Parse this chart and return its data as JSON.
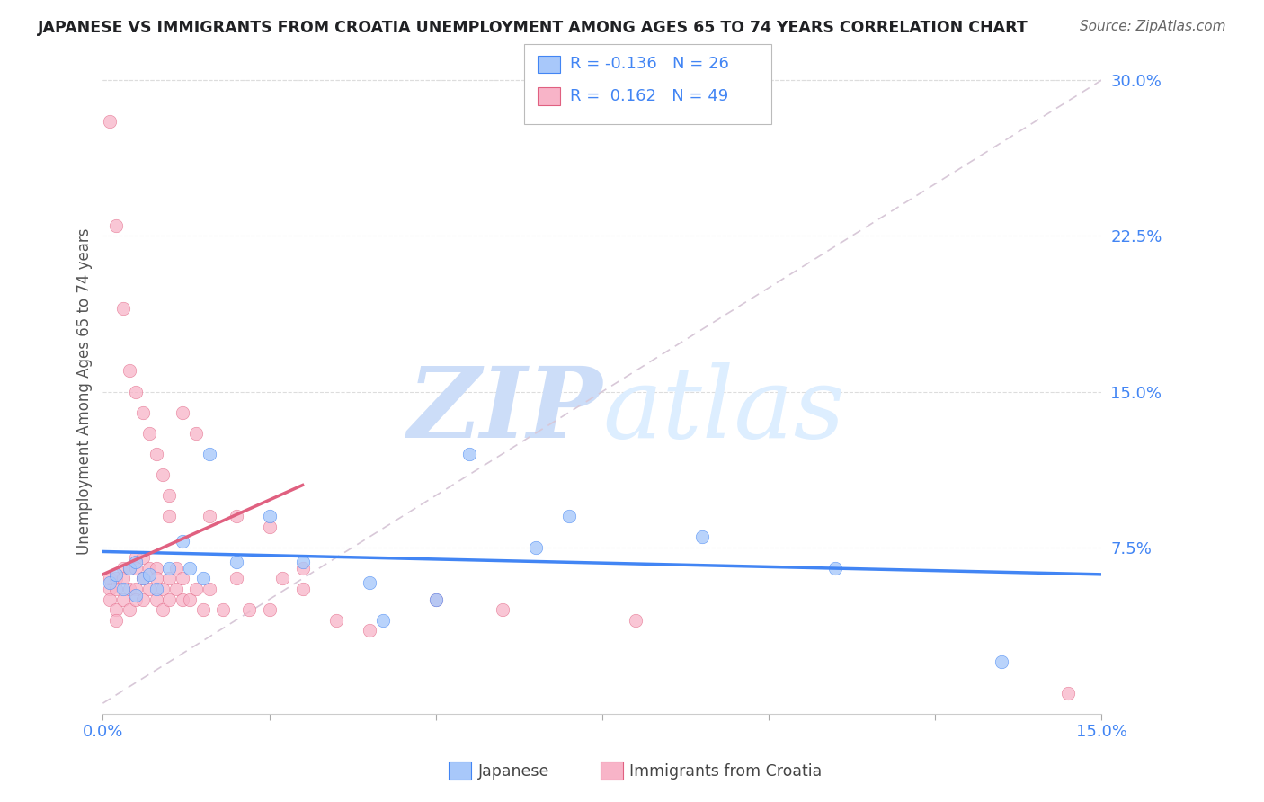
{
  "title": "JAPANESE VS IMMIGRANTS FROM CROATIA UNEMPLOYMENT AMONG AGES 65 TO 74 YEARS CORRELATION CHART",
  "source": "Source: ZipAtlas.com",
  "ylabel": "Unemployment Among Ages 65 to 74 years",
  "xlim": [
    0.0,
    0.15
  ],
  "ylim": [
    -0.005,
    0.305
  ],
  "legend_blue_label": "Japanese",
  "legend_pink_label": "Immigrants from Croatia",
  "R_blue": -0.136,
  "N_blue": 26,
  "R_pink": 0.162,
  "N_pink": 49,
  "blue_color": "#a8c8fa",
  "pink_color": "#f8b4c8",
  "blue_line_color": "#4285f4",
  "pink_line_color": "#e06080",
  "diag_color": "#c8c8c8",
  "title_color": "#202124",
  "tick_color": "#4285f4",
  "watermark_color": "#ddeeff",
  "japanese_x": [
    0.001,
    0.002,
    0.003,
    0.004,
    0.005,
    0.005,
    0.006,
    0.007,
    0.008,
    0.01,
    0.012,
    0.013,
    0.015,
    0.016,
    0.02,
    0.025,
    0.03,
    0.04,
    0.042,
    0.05,
    0.055,
    0.065,
    0.07,
    0.09,
    0.11,
    0.135
  ],
  "japanese_y": [
    0.058,
    0.062,
    0.055,
    0.065,
    0.068,
    0.052,
    0.06,
    0.062,
    0.055,
    0.065,
    0.078,
    0.065,
    0.06,
    0.12,
    0.068,
    0.09,
    0.068,
    0.058,
    0.04,
    0.05,
    0.12,
    0.075,
    0.09,
    0.08,
    0.065,
    0.02
  ],
  "croatia_x": [
    0.001,
    0.001,
    0.001,
    0.002,
    0.002,
    0.002,
    0.002,
    0.003,
    0.003,
    0.003,
    0.004,
    0.004,
    0.004,
    0.005,
    0.005,
    0.005,
    0.005,
    0.006,
    0.006,
    0.006,
    0.007,
    0.007,
    0.008,
    0.008,
    0.008,
    0.009,
    0.009,
    0.01,
    0.01,
    0.011,
    0.011,
    0.012,
    0.012,
    0.013,
    0.014,
    0.015,
    0.016,
    0.018,
    0.02,
    0.022,
    0.025,
    0.027,
    0.03,
    0.035,
    0.04,
    0.05,
    0.06,
    0.08,
    0.145
  ],
  "croatia_y": [
    0.055,
    0.06,
    0.05,
    0.06,
    0.055,
    0.045,
    0.04,
    0.065,
    0.06,
    0.05,
    0.065,
    0.055,
    0.045,
    0.07,
    0.065,
    0.055,
    0.05,
    0.07,
    0.06,
    0.05,
    0.065,
    0.055,
    0.065,
    0.06,
    0.05,
    0.055,
    0.045,
    0.06,
    0.05,
    0.065,
    0.055,
    0.06,
    0.05,
    0.05,
    0.055,
    0.045,
    0.055,
    0.045,
    0.06,
    0.045,
    0.045,
    0.06,
    0.055,
    0.04,
    0.035,
    0.05,
    0.045,
    0.04,
    0.005
  ],
  "croatia_outlier_x": [
    0.001,
    0.002,
    0.003,
    0.004,
    0.005,
    0.006,
    0.007,
    0.008,
    0.009,
    0.01,
    0.01,
    0.012,
    0.014,
    0.016,
    0.02,
    0.025,
    0.03
  ],
  "croatia_outlier_y": [
    0.28,
    0.23,
    0.19,
    0.16,
    0.15,
    0.14,
    0.13,
    0.12,
    0.11,
    0.1,
    0.09,
    0.14,
    0.13,
    0.09,
    0.09,
    0.085,
    0.065
  ],
  "trend_blue_x0": 0.0,
  "trend_blue_x1": 0.15,
  "trend_blue_y0": 0.073,
  "trend_blue_y1": 0.062,
  "trend_pink_x0": 0.0,
  "trend_pink_x1": 0.03,
  "trend_pink_y0": 0.062,
  "trend_pink_y1": 0.105
}
